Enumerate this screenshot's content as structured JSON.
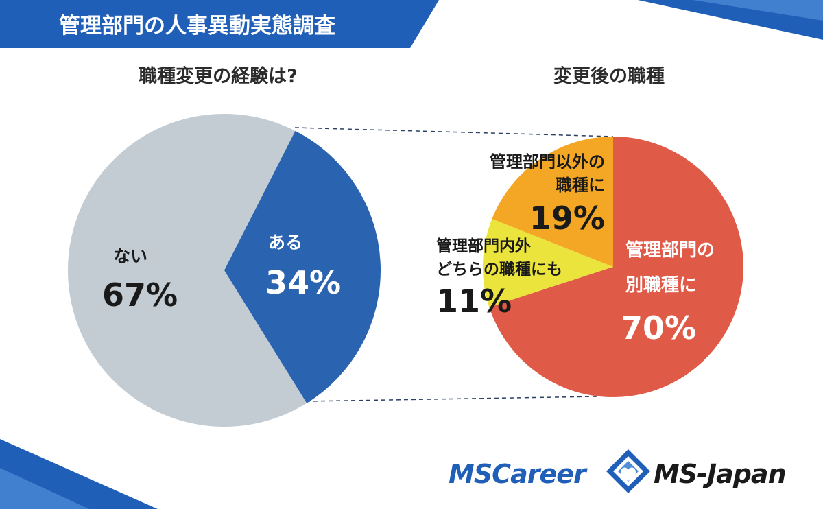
{
  "header": {
    "title": "管理部門の人事異動実態調査"
  },
  "colors": {
    "header_blue": "#1f5fb8",
    "accent_blue": "#2a64b0",
    "gray": "#c3ccd3",
    "red": "#df5a47",
    "orange": "#f3a724",
    "yellow": "#ebe43c",
    "dark_text": "#2b2b2b"
  },
  "chart_data": [
    {
      "type": "pie",
      "title": "職種変更の経験は?",
      "slices": [
        {
          "label": "ある",
          "value": 34,
          "value_text": "34%",
          "color": "#2a64b0"
        },
        {
          "label": "ない",
          "value": 67,
          "value_text": "67%",
          "color": "#c3ccd3"
        }
      ]
    },
    {
      "type": "pie",
      "title": "変更後の職種",
      "slices": [
        {
          "label_lines": [
            "管理部門の",
            "別職種に"
          ],
          "value": 70,
          "value_text": "70%",
          "color": "#df5a47"
        },
        {
          "label_lines": [
            "管理部門内外",
            "どちらの職種にも"
          ],
          "value": 11,
          "value_text": "11%",
          "color": "#ebe43c"
        },
        {
          "label_lines": [
            "管理部門以外の",
            "職種に"
          ],
          "value": 19,
          "value_text": "19%",
          "color": "#f3a724"
        }
      ]
    }
  ],
  "footer": {
    "logo_left": "MSCareer",
    "logo_right": "MS-Japan"
  }
}
